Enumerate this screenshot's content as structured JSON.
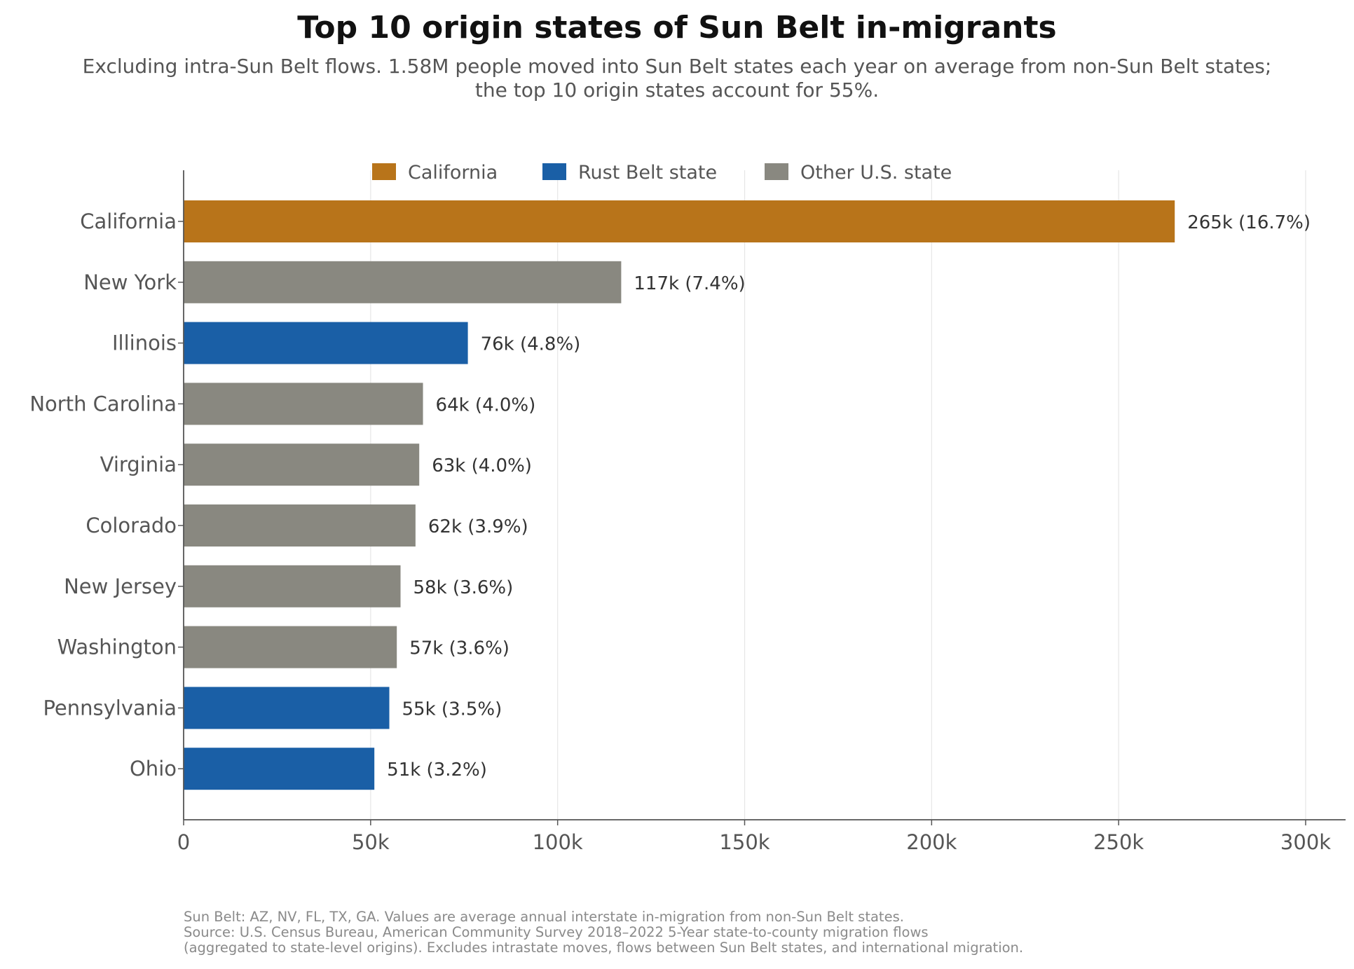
{
  "title": "Top 10 origin states of Sun Belt in-migrants",
  "subtitle_lines": [
    "Excluding intra-Sun Belt flows. 1.58M people moved into Sun Belt states each year on average from non-Sun Belt states;",
    "the top 10 origin states account for 55%."
  ],
  "footnote_lines": [
    "Sun Belt: AZ, NV, FL, TX, GA. Values are average annual interstate in-migration from non-Sun Belt states.",
    "Source: U.S. Census Bureau, American Community Survey 2018–2022 5-Year state-to-county migration flows",
    "(aggregated to state-level origins). Excludes intrastate moves, flows between Sun Belt states, and international migration."
  ],
  "colors": {
    "California": "#b8741a",
    "Rust Belt state": "#1a5fa6",
    "Other U.S. state": "#898880"
  },
  "chart_data": {
    "type": "bar",
    "orientation": "horizontal",
    "xlim": [
      0,
      310000
    ],
    "xticks": [
      0,
      50000,
      100000,
      150000,
      200000,
      250000,
      300000
    ],
    "xtick_labels": [
      "0",
      "50k",
      "100k",
      "150k",
      "200k",
      "250k",
      "300k"
    ],
    "grid": "vertical",
    "legend": {
      "placement": "top-center",
      "entries": [
        "California",
        "Rust Belt state",
        "Other U.S. state"
      ]
    },
    "categories": [
      "California",
      "New York",
      "Illinois",
      "North Carolina",
      "Virginia",
      "Colorado",
      "New Jersey",
      "Washington",
      "Pennsylvania",
      "Ohio"
    ],
    "values": [
      265000,
      117000,
      76000,
      64000,
      63000,
      62000,
      58000,
      57000,
      55000,
      51000
    ],
    "groups": [
      "California",
      "Other U.S. state",
      "Rust Belt state",
      "Other U.S. state",
      "Other U.S. state",
      "Other U.S. state",
      "Other U.S. state",
      "Other U.S. state",
      "Rust Belt state",
      "Rust Belt state"
    ],
    "data_labels": [
      "265k  (16.7%)",
      "117k  (7.4%)",
      "76k  (4.8%)",
      "64k  (4.0%)",
      "63k  (4.0%)",
      "62k  (3.9%)",
      "58k  (3.6%)",
      "57k  (3.6%)",
      "55k  (3.5%)",
      "51k  (3.2%)"
    ]
  }
}
